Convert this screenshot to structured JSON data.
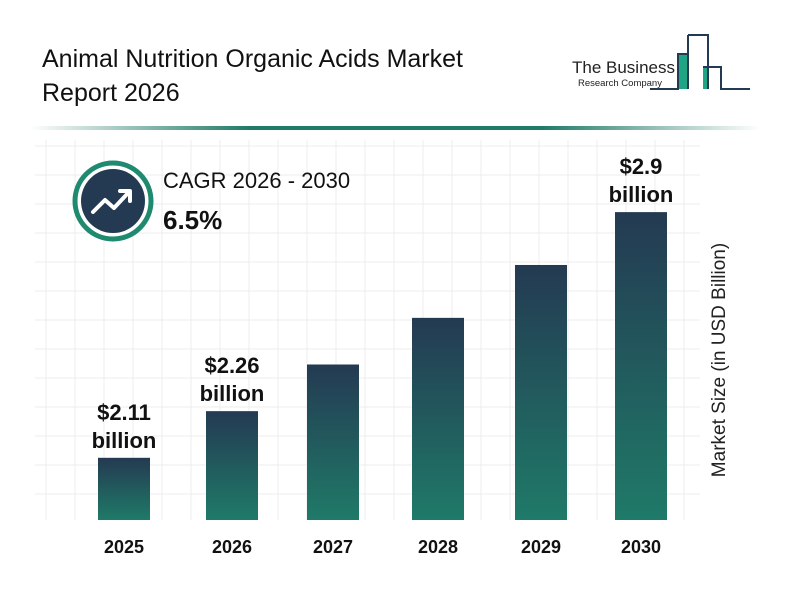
{
  "header": {
    "title": "Animal Nutrition Organic Acids Market Report 2026"
  },
  "logo": {
    "line1": "The Business",
    "line2": "Research Company"
  },
  "cagr": {
    "label": "CAGR 2026 - 2030",
    "value": "6.5%",
    "icon": "trending-up-icon"
  },
  "colors": {
    "bar_top": "#243a52",
    "bar_bottom": "#1f7a68",
    "accent": "#1f7a68"
  },
  "chart_data": {
    "type": "bar",
    "title": "",
    "xlabel": "",
    "ylabel": "Market Size (in USD Billion)",
    "categories": [
      "2025",
      "2026",
      "2027",
      "2028",
      "2029",
      "2030"
    ],
    "values": [
      2.11,
      2.26,
      2.41,
      2.56,
      2.73,
      2.9
    ],
    "data_labels": [
      "$2.11 billion",
      "$2.26 billion",
      "",
      "",
      "",
      "$2.9 billion"
    ],
    "grid": true
  }
}
